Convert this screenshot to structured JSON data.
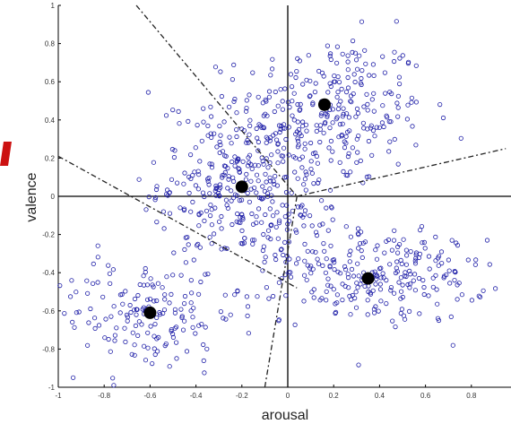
{
  "chart_data": {
    "type": "scatter",
    "xlabel": "arousal",
    "ylabel": "valence",
    "xlim": [
      -1,
      1
    ],
    "ylim": [
      -1,
      1
    ],
    "xticks": [
      "-1",
      "-0.8",
      "-0.6",
      "-0.4",
      "-0.2",
      "0",
      "0.2",
      "0.4",
      "0.6",
      "0.8"
    ],
    "yticks": [
      "1",
      "0.8",
      "0.6",
      "0.4",
      "0.2",
      "0",
      "-0.2",
      "-0.4",
      "-0.6",
      "-0.8",
      "-1"
    ],
    "grid": false,
    "centroids": [
      {
        "x": 0.16,
        "y": 0.48
      },
      {
        "x": -0.2,
        "y": 0.05
      },
      {
        "x": 0.35,
        "y": -0.43
      },
      {
        "x": -0.6,
        "y": -0.61
      }
    ],
    "boundaries": [
      {
        "x": [
          -0.66,
          0.04
        ],
        "y": [
          1.0,
          0.0
        ]
      },
      {
        "x": [
          -1.0,
          0.04
        ],
        "y": [
          0.21,
          -0.48
        ]
      },
      {
        "x": [
          0.04,
          0.95
        ],
        "y": [
          0.0,
          0.25
        ]
      },
      {
        "x": [
          0.04,
          -0.1
        ],
        "y": [
          0.0,
          -1.0
        ]
      }
    ],
    "series": [
      {
        "marker": "circle-open",
        "color": "#1f1fa8",
        "clusters": [
          {
            "cx": 0.2,
            "cy": 0.45,
            "sx": 0.2,
            "sy": 0.2,
            "n": 260
          },
          {
            "cx": -0.22,
            "cy": 0.08,
            "sx": 0.17,
            "sy": 0.21,
            "n": 280
          },
          {
            "cx": 0.42,
            "cy": -0.42,
            "sx": 0.22,
            "sy": 0.12,
            "n": 230
          },
          {
            "cx": -0.62,
            "cy": -0.62,
            "sx": 0.2,
            "sy": 0.15,
            "n": 170
          },
          {
            "cx": 0.02,
            "cy": -0.15,
            "sx": 0.13,
            "sy": 0.22,
            "n": 90
          }
        ]
      }
    ]
  },
  "accent_colors": {
    "marker": "#1f1fa8",
    "centroid": "#000000",
    "fragment": "#cc1111"
  }
}
